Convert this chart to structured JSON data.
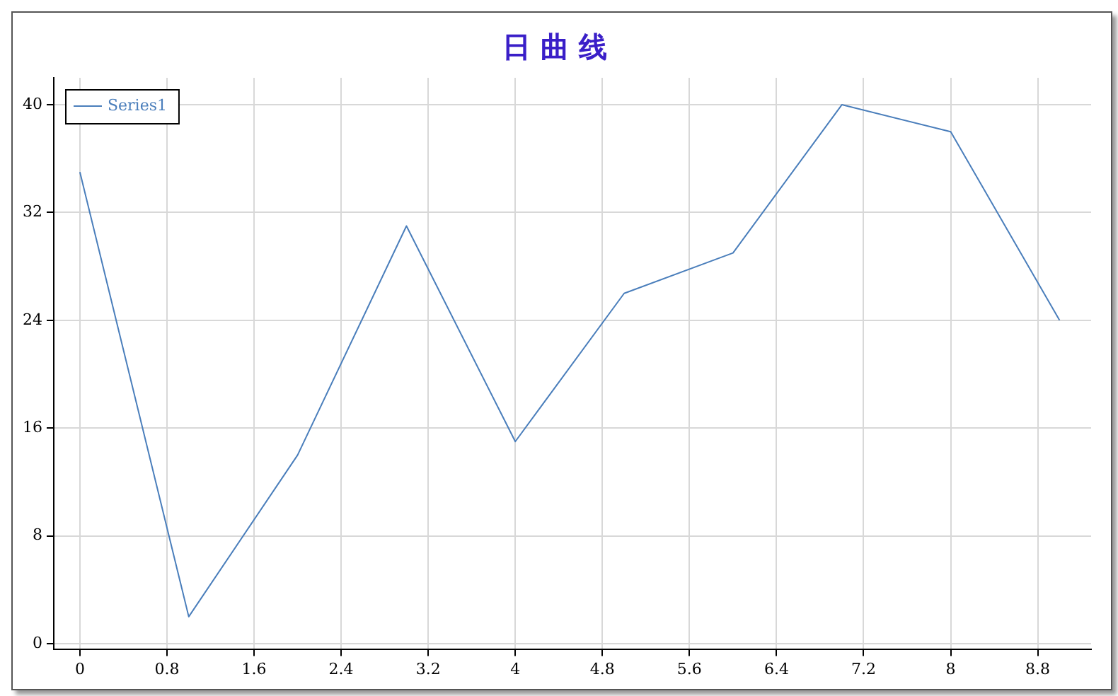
{
  "chart_data": {
    "type": "line",
    "title": "日 曲 线",
    "x": [
      0,
      1,
      2,
      3,
      4,
      5,
      6,
      7,
      8,
      9
    ],
    "series": [
      {
        "name": "Series1",
        "color": "#4a7ebb",
        "values": [
          35,
          2,
          14,
          31,
          15,
          26,
          29,
          40,
          38,
          24
        ]
      }
    ],
    "xlim": [
      -0.24,
      9.29
    ],
    "xticks": [
      0,
      0.8,
      1.6,
      2.4,
      3.2,
      4,
      4.8,
      5.6,
      6.4,
      7.2,
      8,
      8.8
    ],
    "ylim": [
      -0.4,
      42
    ],
    "yticks": [
      0,
      8,
      16,
      24,
      32,
      40
    ],
    "grid": true,
    "legend": "top left",
    "marker": "none",
    "line_style": "solid"
  }
}
